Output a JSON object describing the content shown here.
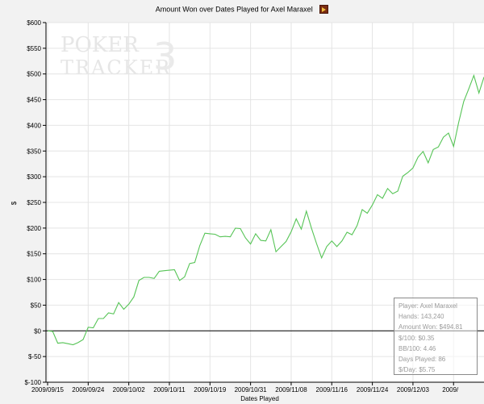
{
  "title": "Amount Won over Dates Played for Axel Maraxel",
  "watermark": {
    "line1": "POKER",
    "line2": "TRACKER",
    "mark": "3"
  },
  "stats": [
    "Player: Axel Maraxel",
    "Hands: 143,240",
    "Amount Won: $494.81",
    "$/100: $0.35",
    "BB/100: 4.46",
    "Days Played: 86",
    "$/Day: $5.75"
  ],
  "colors": {
    "line": "#56c456",
    "grid": "#e4e4e4",
    "zero": "#000000",
    "background": "#ffffff"
  },
  "chart_data": {
    "type": "line",
    "title": "Amount Won over Dates Played for Axel Maraxel",
    "xlabel": "Dates Played",
    "ylabel": "$",
    "ylim": [
      -100,
      600
    ],
    "y_ticks": [
      "$-100",
      "$-50",
      "$0",
      "$50",
      "$100",
      "$150",
      "$200",
      "$250",
      "$300",
      "$350",
      "$400",
      "$450",
      "$500",
      "$550",
      "$600"
    ],
    "x_ticks": [
      "2009/09/15",
      "2009/09/24",
      "2009/10/02",
      "2009/10/11",
      "2009/10/19",
      "2009/10/31",
      "2009/11/08",
      "2009/11/16",
      "2009/11/24",
      "2009/12/03",
      "2009/"
    ],
    "x_tick_index": [
      0,
      8,
      16,
      24,
      32,
      40,
      48,
      56,
      64,
      72,
      80
    ],
    "grid": true,
    "series": [
      {
        "values": [
          0,
          -1,
          -24,
          -23,
          -25,
          -27,
          -23,
          -17,
          7,
          6,
          24,
          24,
          35,
          33,
          55,
          42,
          52,
          66,
          98,
          104,
          104,
          102,
          116,
          117,
          118,
          119,
          98,
          105,
          131,
          133,
          166,
          190,
          189,
          188,
          183,
          184,
          183,
          200,
          199,
          181,
          169,
          189,
          176,
          175,
          197,
          154,
          164,
          174,
          193,
          218,
          198,
          233,
          200,
          170,
          142,
          164,
          175,
          164,
          175,
          192,
          187,
          205,
          236,
          229,
          245,
          265,
          258,
          277,
          267,
          272,
          301,
          308,
          317,
          338,
          349,
          327,
          353,
          358,
          377,
          385,
          359,
          405,
          446,
          471,
          497,
          463,
          494
        ]
      }
    ]
  }
}
